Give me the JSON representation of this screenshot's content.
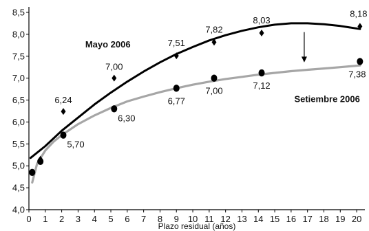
{
  "chart_data": {
    "type": "scatter",
    "xlabel": "Plazo residual (años)",
    "ylabel": "",
    "xlim": [
      0,
      20.5
    ],
    "ylim": [
      4.0,
      8.5
    ],
    "x_ticks": [
      0,
      1,
      2,
      3,
      4,
      5,
      6,
      7,
      8,
      9,
      10,
      11,
      12,
      13,
      14,
      15,
      16,
      17,
      18,
      19,
      20
    ],
    "y_ticks": [
      4.0,
      4.5,
      5.0,
      5.5,
      6.0,
      6.5,
      7.0,
      7.5,
      8.0,
      8.5
    ],
    "y_tick_labels": [
      "4,0",
      "4,5",
      "5,0",
      "5,5",
      "6,0",
      "6,5",
      "7,0",
      "7,5",
      "8,0",
      "8,5"
    ],
    "series": [
      {
        "name": "Mayo 2006",
        "marker": "diamond",
        "curve_color": "#000000",
        "points": [
          {
            "x": 0.2,
            "y": 4.85,
            "label": ""
          },
          {
            "x": 0.7,
            "y": 5.15,
            "label": ""
          },
          {
            "x": 2.1,
            "y": 6.24,
            "label": "6,24"
          },
          {
            "x": 5.2,
            "y": 7.0,
            "label": "7,00"
          },
          {
            "x": 9.0,
            "y": 7.51,
            "label": "7,51"
          },
          {
            "x": 11.3,
            "y": 7.82,
            "label": "7,82"
          },
          {
            "x": 14.2,
            "y": 8.03,
            "label": "8,03"
          },
          {
            "x": 20.2,
            "y": 8.18,
            "label": "8,18"
          }
        ],
        "curve": [
          [
            0.1,
            5.18
          ],
          [
            1,
            5.45
          ],
          [
            2,
            5.8
          ],
          [
            3,
            6.1
          ],
          [
            4,
            6.4
          ],
          [
            5,
            6.67
          ],
          [
            6,
            6.92
          ],
          [
            7,
            7.15
          ],
          [
            8,
            7.36
          ],
          [
            9,
            7.55
          ],
          [
            10,
            7.71
          ],
          [
            11,
            7.86
          ],
          [
            12,
            7.98
          ],
          [
            13,
            8.08
          ],
          [
            14,
            8.16
          ],
          [
            15,
            8.22
          ],
          [
            16,
            8.25
          ],
          [
            17,
            8.25
          ],
          [
            18,
            8.23
          ],
          [
            19,
            8.19
          ],
          [
            20.2,
            8.12
          ]
        ]
      },
      {
        "name": "Setiembre 2006",
        "marker": "circle",
        "curve_color": "#a6a6a6",
        "points": [
          {
            "x": 0.2,
            "y": 4.85,
            "label": ""
          },
          {
            "x": 0.7,
            "y": 5.1,
            "label": ""
          },
          {
            "x": 2.1,
            "y": 5.7,
            "label": "5,70"
          },
          {
            "x": 5.2,
            "y": 6.3,
            "label": "6,30"
          },
          {
            "x": 9.0,
            "y": 6.77,
            "label": "6,77"
          },
          {
            "x": 11.3,
            "y": 7.0,
            "label": "7,00"
          },
          {
            "x": 14.2,
            "y": 7.12,
            "label": "7,12"
          },
          {
            "x": 20.2,
            "y": 7.38,
            "label": "7,38"
          }
        ],
        "curve": [
          [
            0.2,
            4.62
          ],
          [
            0.5,
            5.05
          ],
          [
            1,
            5.35
          ],
          [
            1.5,
            5.55
          ],
          [
            2,
            5.7
          ],
          [
            3,
            5.95
          ],
          [
            4,
            6.15
          ],
          [
            5,
            6.32
          ],
          [
            6,
            6.47
          ],
          [
            7,
            6.58
          ],
          [
            8,
            6.68
          ],
          [
            9,
            6.77
          ],
          [
            10,
            6.85
          ],
          [
            11,
            6.92
          ],
          [
            12,
            6.98
          ],
          [
            13,
            7.03
          ],
          [
            14,
            7.08
          ],
          [
            15,
            7.12
          ],
          [
            16,
            7.16
          ],
          [
            17,
            7.19
          ],
          [
            18,
            7.22
          ],
          [
            19,
            7.25
          ],
          [
            20.2,
            7.29
          ]
        ]
      }
    ],
    "annotation": "arrow pointing down at around 16.8 years from Mayo curve to Setiembre curve"
  }
}
